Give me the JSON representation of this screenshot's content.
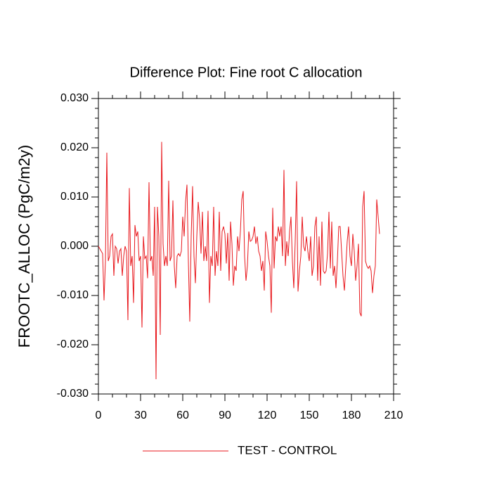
{
  "chart_data": {
    "type": "line",
    "title": "Difference Plot: Fine root C allocation",
    "y_label": "FROOTC_ALLOC  (PgC/m2y)",
    "x": [
      0,
      1,
      2,
      3,
      4,
      5,
      6,
      7,
      8,
      9,
      10,
      11,
      12,
      13,
      14,
      15,
      16,
      17,
      18,
      19,
      20,
      21,
      22,
      23,
      24,
      25,
      26,
      27,
      28,
      29,
      30,
      31,
      32,
      33,
      34,
      35,
      36,
      37,
      38,
      39,
      40,
      41,
      42,
      43,
      44,
      45,
      46,
      47,
      48,
      49,
      50,
      51,
      52,
      53,
      54,
      55,
      56,
      57,
      58,
      59,
      60,
      61,
      62,
      63,
      64,
      65,
      66,
      67,
      68,
      69,
      70,
      71,
      72,
      73,
      74,
      75,
      76,
      77,
      78,
      79,
      80,
      81,
      82,
      83,
      84,
      85,
      86,
      87,
      88,
      89,
      90,
      91,
      92,
      93,
      94,
      95,
      96,
      97,
      98,
      99,
      100,
      101,
      102,
      103,
      104,
      105,
      106,
      107,
      108,
      109,
      110,
      111,
      112,
      113,
      114,
      115,
      116,
      117,
      118,
      119,
      120,
      121,
      122,
      123,
      124,
      125,
      126,
      127,
      128,
      129,
      130,
      131,
      132,
      133,
      134,
      135,
      136,
      137,
      138,
      139,
      140,
      141,
      142,
      143,
      144,
      145,
      146,
      147,
      148,
      149,
      150,
      151,
      152,
      153,
      154,
      155,
      156,
      157,
      158,
      159,
      160,
      161,
      162,
      163,
      164,
      165,
      166,
      167,
      168,
      169,
      170,
      171,
      172,
      173,
      174,
      175,
      176,
      177,
      178,
      179,
      180,
      181,
      182,
      183,
      184,
      185,
      186,
      187,
      188,
      189,
      190,
      191,
      192,
      193,
      194,
      195,
      196,
      197,
      198,
      199,
      200
    ],
    "series": [
      {
        "name": "TEST - CONTROL",
        "color": "#e8171c",
        "values": [
          0,
          -0.0005,
          -0.001,
          -0.0015,
          -0.011,
          -0.003,
          0.019,
          -0.003,
          -0.002,
          0.002,
          0.0025,
          -0.006,
          0,
          -0.0005,
          -0.0035,
          -0.001,
          -0.0005,
          -0.006,
          -0.002,
          0,
          -0.001,
          -0.015,
          0.0118,
          -0.004,
          -0.002,
          -0.0115,
          0.0043,
          0.002,
          0.003,
          -0.003,
          -0.002,
          -0.0165,
          0.002,
          -0.0025,
          -0.002,
          -0.0065,
          0.013,
          -0.003,
          -0.002,
          -0.006,
          0.008,
          -0.027,
          0.008,
          0.002,
          -0.018,
          0.0212,
          0.0005,
          -0.004,
          -0.002,
          -0.004,
          0.0133,
          -0.003,
          -0.002,
          0.0093,
          -0.004,
          -0.0085,
          -0.002,
          -0.0015,
          -0.002,
          -0.001,
          0.006,
          0.002,
          0.009,
          0.0125,
          -0.003,
          -0.0153,
          0.002,
          0.0122,
          -0.002,
          -0.0075,
          0.002,
          0.009,
          0.0055,
          -0.0015,
          0.007,
          -0.003,
          0,
          -0.003,
          0.0072,
          -0.0115,
          -0.002,
          -0.004,
          0.008,
          -0.006,
          -0.001,
          -0.004,
          0.007,
          -0.005,
          0.003,
          0.004,
          0.0025,
          -0.0035,
          0.0027,
          -0.007,
          0.005,
          0.0005,
          -0.008,
          -0.004,
          -0.005,
          0.002,
          -0.001,
          0.003,
          0.0095,
          0.0112,
          -0.002,
          -0.007,
          -0.004,
          0.003,
          0.001,
          0.0012,
          0.002,
          0.004,
          0.0005,
          0.002,
          -0.001,
          -0.002,
          -0.005,
          -0.003,
          -0.009,
          0.003,
          0.001,
          -0.002,
          -0.004,
          -0.0135,
          0.0078,
          -0.0045,
          0.002,
          0.001,
          0.004,
          0.002,
          0.004,
          -0.002,
          0.0155,
          -0.004,
          0.001,
          -0.002,
          0.003,
          0.006,
          -0.003,
          -0.0085,
          0.001,
          0.0132,
          -0.0092,
          -0.005,
          -0.002,
          0.006,
          0,
          -0.001,
          0.002,
          -0.001,
          -0.003,
          0.002,
          -0.006,
          -0.004,
          0.004,
          0.006,
          -0.007,
          0.002,
          -0.008,
          0.005,
          -0.005,
          -0.0055,
          -0.005,
          -0.0015,
          0.007,
          -0.0045,
          0.005,
          -0.006,
          -0.004,
          -0.0085,
          -0.003,
          0.004,
          0.004,
          -0.001,
          -0.006,
          -0.009,
          -0.004,
          0.001,
          0.004,
          -0.002,
          -0.004,
          0.0025,
          -0.001,
          -0.007,
          -0.004,
          0.0005,
          -0.0135,
          -0.0142,
          0.008,
          0.0112,
          -0.003,
          -0.004,
          -0.0045,
          -0.004,
          -0.005,
          -0.0095,
          -0.006,
          -0.004,
          0.0095,
          0.006,
          0.0025
        ]
      }
    ],
    "xlim": [
      0,
      210
    ],
    "xticks": [
      0,
      30,
      60,
      90,
      120,
      150,
      180,
      210
    ],
    "ylim": [
      -0.03,
      0.03
    ],
    "yticks": [
      {
        "value": -0.03,
        "label": "-0.030"
      },
      {
        "value": -0.02,
        "label": "-0.020"
      },
      {
        "value": -0.01,
        "label": "-0.010"
      },
      {
        "value": 0,
        "label": "0.000"
      },
      {
        "value": 0.01,
        "label": "0.010"
      },
      {
        "value": 0.02,
        "label": "0.020"
      },
      {
        "value": 0.03,
        "label": "0.030"
      }
    ],
    "grid": false,
    "legend": "bottom"
  }
}
